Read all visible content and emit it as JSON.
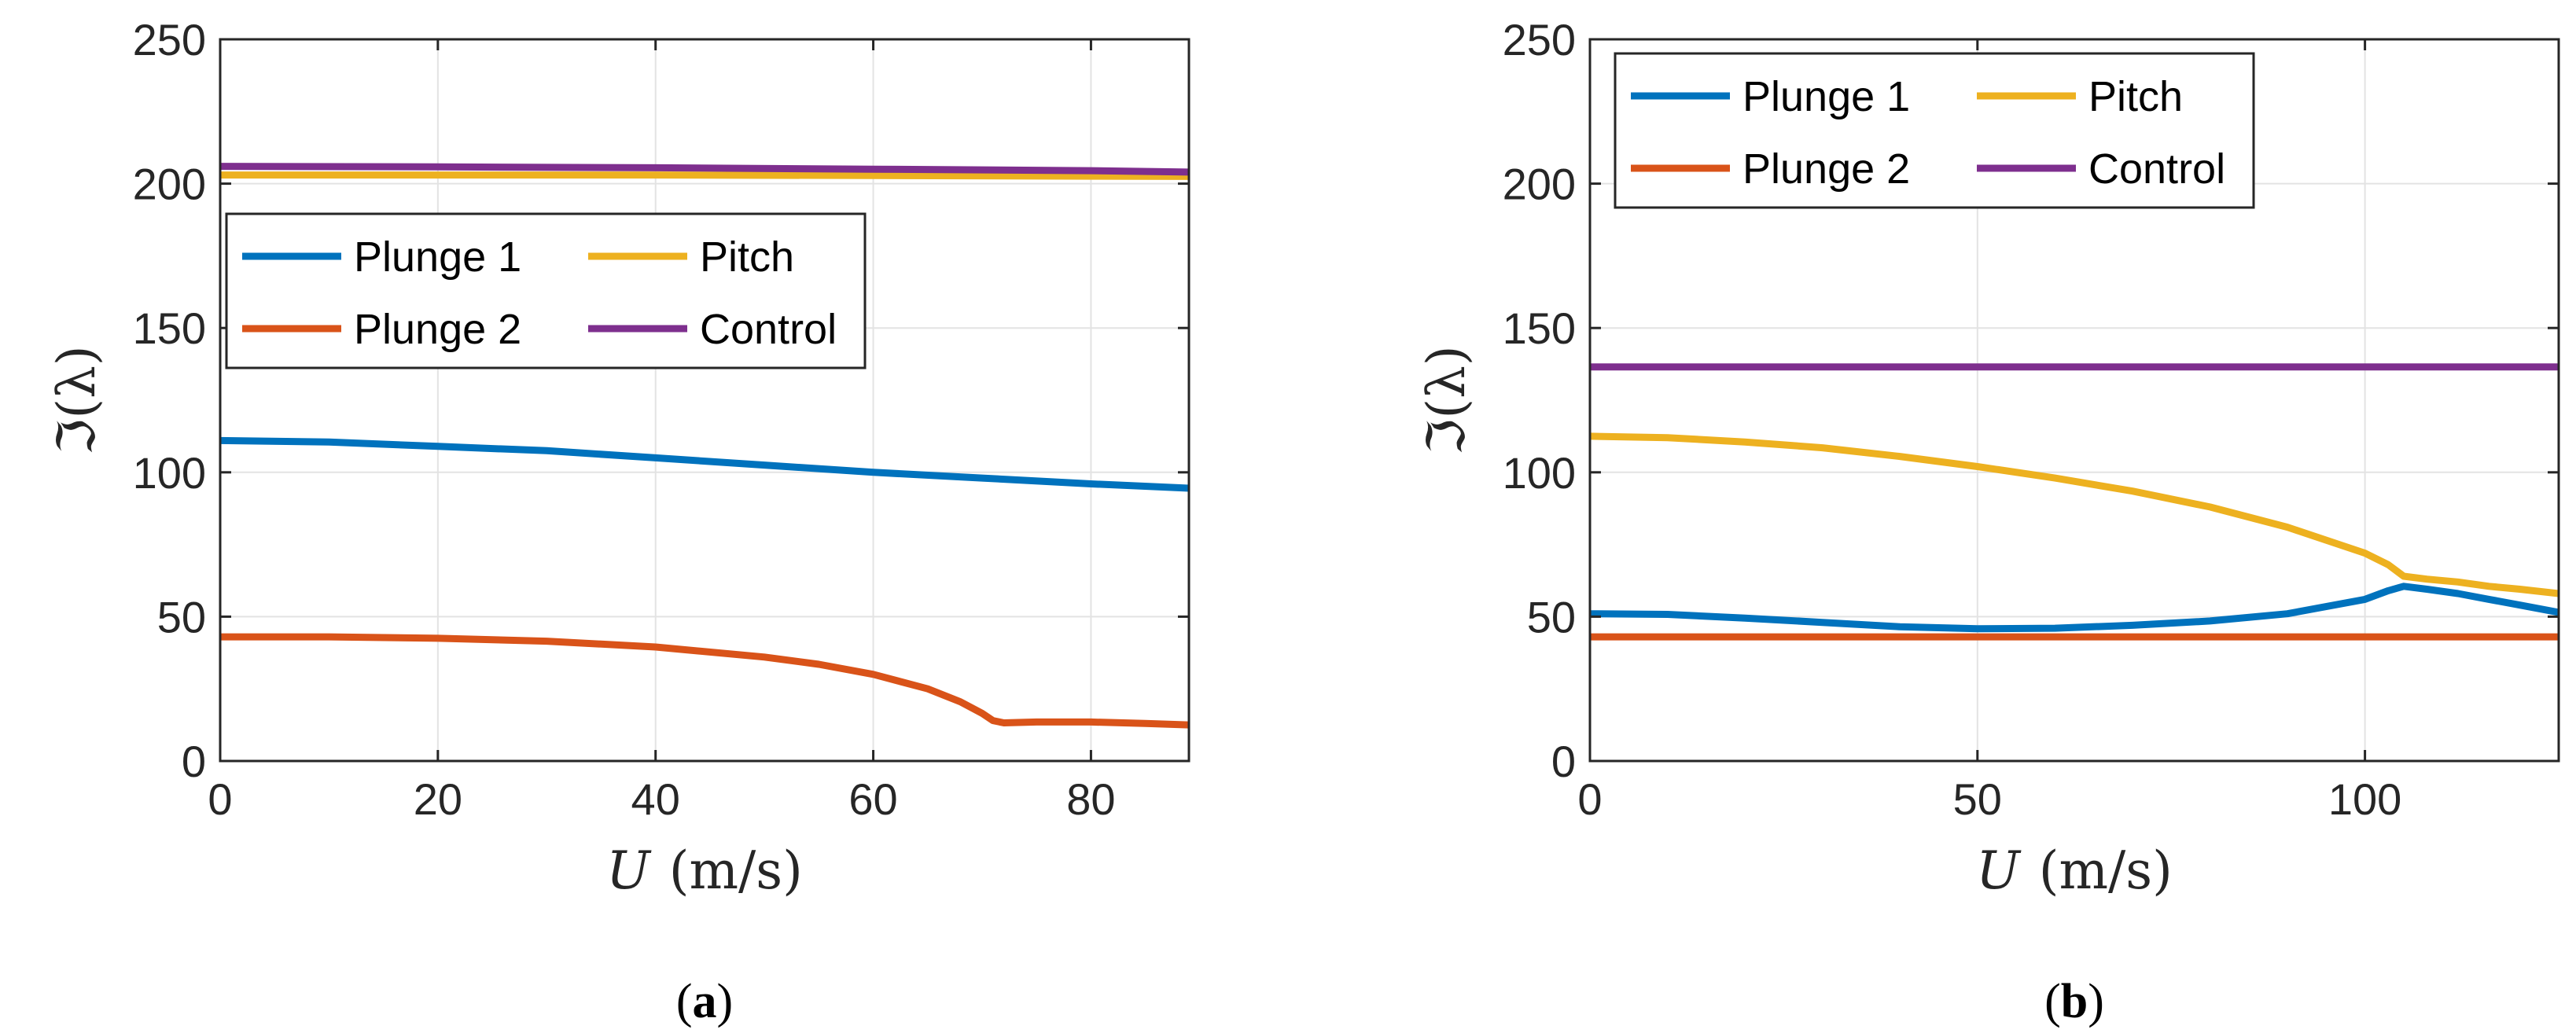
{
  "chart_data": [
    {
      "type": "line",
      "panel": "a",
      "caption_label": "a",
      "xlabel_var": "U",
      "xlabel_unit": "(m/s)",
      "ylabel": "ℑ(λ)",
      "xlim": [
        0,
        89
      ],
      "ylim": [
        0,
        250
      ],
      "xticks": [
        0,
        20,
        40,
        60,
        80
      ],
      "yticks": [
        0,
        50,
        100,
        150,
        200,
        250
      ],
      "grid": true,
      "legend_placement": "center-left",
      "series": [
        {
          "name": "Plunge 1",
          "color": "#0072BD",
          "x": [
            0,
            10,
            20,
            30,
            40,
            50,
            60,
            70,
            80,
            89
          ],
          "y": [
            111,
            110.5,
            109,
            107.5,
            105,
            102.5,
            100,
            98,
            96,
            94.5
          ]
        },
        {
          "name": "Pitch",
          "color": "#EDB120",
          "x": [
            0,
            20,
            40,
            60,
            80,
            89
          ],
          "y": [
            203,
            203,
            203,
            202.8,
            202.6,
            202.5
          ]
        },
        {
          "name": "Plunge 2",
          "color": "#D95319",
          "x": [
            0,
            10,
            20,
            30,
            40,
            50,
            55,
            60,
            65,
            68,
            70,
            71,
            72,
            75,
            80,
            85,
            89
          ],
          "y": [
            43,
            43,
            42.5,
            41.5,
            39.5,
            36,
            33.5,
            30,
            25,
            20.5,
            16.5,
            14,
            13.2,
            13.5,
            13.5,
            13,
            12.5
          ]
        },
        {
          "name": "Control",
          "color": "#7E2F8E",
          "x": [
            0,
            20,
            40,
            60,
            80,
            89
          ],
          "y": [
            206,
            205.8,
            205.5,
            205,
            204.5,
            204
          ]
        }
      ]
    },
    {
      "type": "line",
      "panel": "b",
      "caption_label": "b",
      "xlabel_var": "U",
      "xlabel_unit": "(m/s)",
      "ylabel": "ℑ(λ)",
      "xlim": [
        0,
        125
      ],
      "ylim": [
        0,
        250
      ],
      "xticks": [
        0,
        50,
        100
      ],
      "yticks": [
        0,
        50,
        100,
        150,
        200,
        250
      ],
      "grid": true,
      "legend_placement": "top-left",
      "series": [
        {
          "name": "Plunge 1",
          "color": "#0072BD",
          "x": [
            0,
            10,
            20,
            30,
            40,
            50,
            60,
            70,
            80,
            90,
            100,
            103,
            105,
            108,
            112,
            116,
            120,
            125
          ],
          "y": [
            51,
            50.8,
            49.5,
            48,
            46.5,
            45.8,
            46,
            47,
            48.5,
            51,
            56,
            59,
            60.5,
            59.5,
            58,
            56,
            54,
            51.5
          ]
        },
        {
          "name": "Pitch",
          "color": "#EDB120",
          "x": [
            0,
            10,
            20,
            30,
            40,
            50,
            60,
            70,
            80,
            90,
            100,
            103,
            105,
            108,
            112,
            116,
            120,
            125
          ],
          "y": [
            112.5,
            112,
            110.5,
            108.5,
            105.5,
            102,
            98,
            93.5,
            88,
            81,
            72,
            68,
            64,
            63,
            62,
            60.5,
            59.5,
            58
          ]
        },
        {
          "name": "Plunge 2",
          "color": "#D95319",
          "x": [
            0,
            50,
            100,
            125
          ],
          "y": [
            43,
            43,
            43,
            43
          ]
        },
        {
          "name": "Control",
          "color": "#7E2F8E",
          "x": [
            0,
            50,
            100,
            125
          ],
          "y": [
            136.5,
            136.5,
            136.5,
            136.5
          ]
        }
      ]
    }
  ]
}
